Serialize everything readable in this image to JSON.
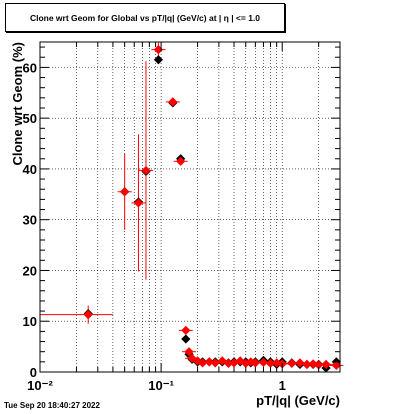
{
  "chart_data": {
    "type": "scatter",
    "title": "Clone wrt Geom for Global vs pT/|q| (GeV/c) at |  η | <= 1.0",
    "xlabel": "pT/|q| (GeV/c)",
    "ylabel": "Clone wrt Geom (%)",
    "xscale": "log",
    "xlim": [
      0.01,
      3.0
    ],
    "ylim": [
      0,
      65
    ],
    "grid": true,
    "x_ticks": [
      {
        "value": 0.01,
        "label": "10⁻²"
      },
      {
        "value": 0.1,
        "label": "10⁻¹"
      },
      {
        "value": 1,
        "label": "1"
      }
    ],
    "y_ticks": [
      0,
      10,
      20,
      30,
      40,
      50,
      60
    ],
    "series": [
      {
        "color": "#000000",
        "marker": "diamond",
        "points": [
          [
            0.025,
            11.5
          ],
          [
            0.05,
            35.5
          ],
          [
            0.065,
            33.5
          ],
          [
            0.075,
            39.5
          ],
          [
            0.095,
            61.5
          ],
          [
            0.125,
            53.0
          ],
          [
            0.145,
            42.0
          ],
          [
            0.16,
            6.5
          ],
          [
            0.17,
            3.5
          ],
          [
            0.18,
            2.5
          ],
          [
            0.2,
            2.0
          ],
          [
            0.22,
            2.0
          ],
          [
            0.25,
            2.0
          ],
          [
            0.28,
            2.0
          ],
          [
            0.32,
            2.0
          ],
          [
            0.36,
            1.8
          ],
          [
            0.4,
            2.0
          ],
          [
            0.45,
            2.0
          ],
          [
            0.5,
            2.0
          ],
          [
            0.55,
            1.8
          ],
          [
            0.6,
            2.0
          ],
          [
            0.7,
            2.3
          ],
          [
            0.8,
            2.0
          ],
          [
            0.9,
            1.5
          ],
          [
            1.0,
            2.0
          ],
          [
            1.2,
            1.8
          ],
          [
            1.4,
            1.5
          ],
          [
            1.6,
            1.5
          ],
          [
            1.8,
            1.5
          ],
          [
            2.0,
            1.5
          ],
          [
            2.3,
            0.8
          ],
          [
            2.8,
            2.0
          ]
        ]
      },
      {
        "color": "#ff0000",
        "marker": "diamond",
        "points": [
          {
            "x": 0.025,
            "y": 11.3,
            "xerr": [
              0.01,
              0.04
            ],
            "yerr": 1.8
          },
          {
            "x": 0.05,
            "y": 35.5,
            "yerr": 7.5
          },
          {
            "x": 0.065,
            "y": 33.3,
            "yerr": 13.5
          },
          {
            "x": 0.075,
            "y": 39.7,
            "yerr": 21.5
          },
          {
            "x": 0.095,
            "y": 63.5,
            "yerr": 1.5
          },
          {
            "x": 0.125,
            "y": 53.2,
            "yerr": 0.8
          },
          {
            "x": 0.145,
            "y": 41.5,
            "yerr": 0.8
          },
          {
            "x": 0.16,
            "y": 8.2,
            "yerr": 0.5
          },
          {
            "x": 0.17,
            "y": 4.0,
            "yerr": 0.4
          },
          {
            "x": 0.18,
            "y": 2.7,
            "yerr": 0.3
          },
          {
            "x": 0.2,
            "y": 2.2,
            "yerr": 0.3
          },
          {
            "x": 0.22,
            "y": 1.8,
            "yerr": 0.3
          },
          {
            "x": 0.25,
            "y": 2.0,
            "yerr": 0.3
          },
          {
            "x": 0.28,
            "y": 1.8,
            "yerr": 0.3
          },
          {
            "x": 0.32,
            "y": 2.2,
            "yerr": 0.3
          },
          {
            "x": 0.36,
            "y": 1.7,
            "yerr": 0.3
          },
          {
            "x": 0.4,
            "y": 1.8,
            "yerr": 0.3
          },
          {
            "x": 0.45,
            "y": 2.2,
            "yerr": 0.3
          },
          {
            "x": 0.5,
            "y": 1.7,
            "yerr": 0.3
          },
          {
            "x": 0.55,
            "y": 2.0,
            "yerr": 0.3
          },
          {
            "x": 0.6,
            "y": 1.8,
            "yerr": 0.3
          },
          {
            "x": 0.7,
            "y": 1.9,
            "yerr": 0.3
          },
          {
            "x": 0.8,
            "y": 1.7,
            "yerr": 0.3
          },
          {
            "x": 0.9,
            "y": 1.8,
            "yerr": 0.3
          },
          {
            "x": 1.0,
            "y": 1.6,
            "yerr": 0.3
          },
          {
            "x": 1.2,
            "y": 1.7,
            "yerr": 0.3
          },
          {
            "x": 1.4,
            "y": 1.8,
            "yerr": 0.3
          },
          {
            "x": 1.6,
            "y": 1.5,
            "yerr": 0.4
          },
          {
            "x": 1.8,
            "y": 1.6,
            "yerr": 0.4
          },
          {
            "x": 2.0,
            "y": 1.4,
            "yerr": 0.4
          },
          {
            "x": 2.3,
            "y": 1.5,
            "yerr": 0.5
          },
          {
            "x": 2.8,
            "y": 1.3,
            "yerr": 0.5
          }
        ]
      }
    ]
  },
  "footer": "Tue Sep 20 18:40:27 2022"
}
